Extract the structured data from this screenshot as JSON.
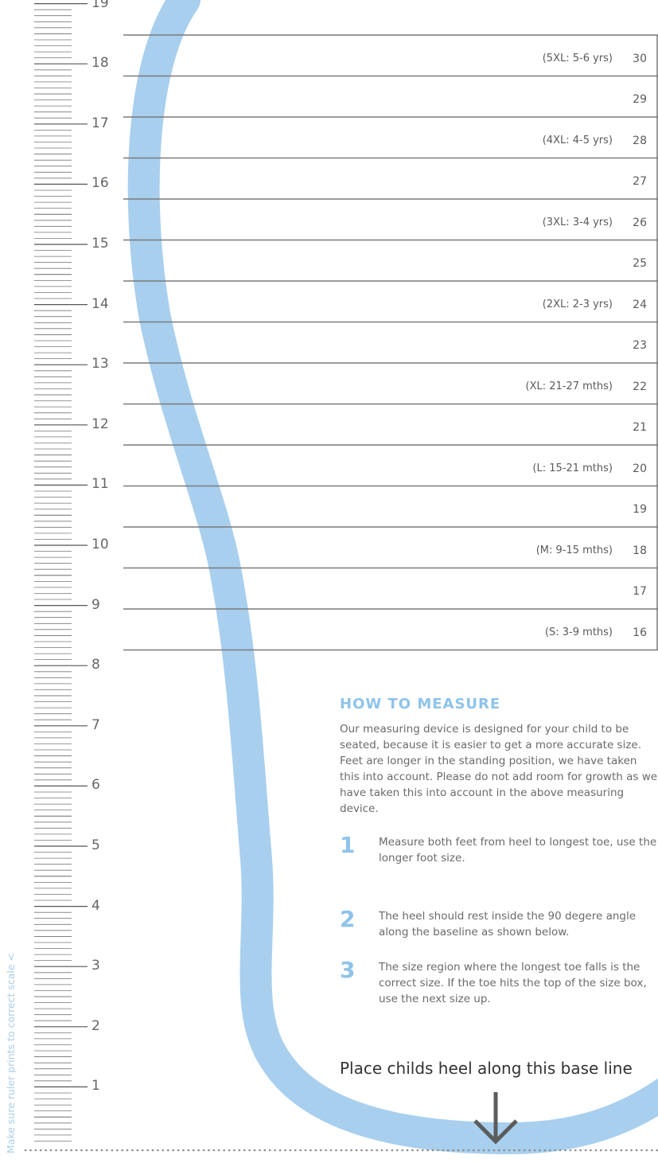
{
  "ruler": {
    "numbers": [
      "19",
      "18",
      "17",
      "16",
      "15",
      "14",
      "13",
      "12",
      "11",
      "10",
      "9",
      "8",
      "7",
      "6",
      "5",
      "4",
      "3",
      "2",
      "1"
    ],
    "side_note": "Make sure ruler prints to correct scale <"
  },
  "sizes": [
    {
      "num": "30",
      "label": "(5XL: 5-6 yrs)"
    },
    {
      "num": "29",
      "label": ""
    },
    {
      "num": "28",
      "label": "(4XL: 4-5 yrs)"
    },
    {
      "num": "27",
      "label": ""
    },
    {
      "num": "26",
      "label": "(3XL: 3-4 yrs)"
    },
    {
      "num": "25",
      "label": ""
    },
    {
      "num": "24",
      "label": "(2XL: 2-3 yrs)"
    },
    {
      "num": "23",
      "label": ""
    },
    {
      "num": "22",
      "label": "(XL: 21-27 mths)"
    },
    {
      "num": "21",
      "label": ""
    },
    {
      "num": "20",
      "label": "(L: 15-21 mths)"
    },
    {
      "num": "19",
      "label": ""
    },
    {
      "num": "18",
      "label": "(M: 9-15 mths)"
    },
    {
      "num": "17",
      "label": ""
    },
    {
      "num": "16",
      "label": "(S: 3-9 mths)"
    }
  ],
  "howto": {
    "title": "HOW TO MEASURE",
    "intro": "Our measuring device is designed for your child to be seated, because it is easier to get a more accurate size. Feet are longer in the standing position, we have taken this into account. Please do not add room for growth as we have taken this into account in the above measuring device.",
    "steps": [
      {
        "num": "1",
        "text": "Measure both feet from heel to longest toe, use the longer foot size."
      },
      {
        "num": "2",
        "text": "The heel should rest inside the 90 degere angle along the baseline as shown below."
      },
      {
        "num": "3",
        "text": "The size region where the longest toe falls is the correct size. If the toe hits the top of the size box, use the next size up."
      }
    ]
  },
  "baseline_text": "Place childs heel along this base line",
  "colors": {
    "accent": "#8ec3ea",
    "foot_outline": "#a3cced",
    "rule_line": "#7a7a7a",
    "text": "#555555"
  },
  "icons": {
    "arrow": "arrow-down-icon",
    "foot": "foot-outline-icon",
    "baseline": "dotted-baseline"
  }
}
